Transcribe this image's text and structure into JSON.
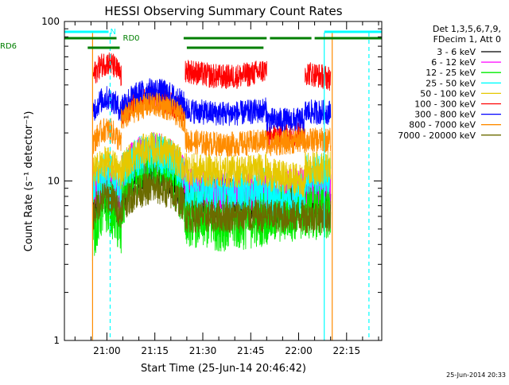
{
  "chart_data": {
    "type": "line",
    "title": "HESSI Observing Summary Count Rates",
    "xlabel": "Start Time (25-Jun-14 20:46:42)",
    "ylabel": "Count Rate (s⁻¹ detector⁻¹)",
    "yscale": "log",
    "ylim": [
      1,
      100
    ],
    "y_ticks": [
      {
        "value": 1,
        "label": "1"
      },
      {
        "value": 10,
        "label": "10"
      },
      {
        "value": 100,
        "label": "100"
      }
    ],
    "xlim": [
      "20:46:42",
      "22:26:00"
    ],
    "x_ticks": [
      {
        "time": "21:00",
        "label": "21:00"
      },
      {
        "time": "21:15",
        "label": "21:15"
      },
      {
        "time": "21:30",
        "label": "21:30"
      },
      {
        "time": "21:45",
        "label": "21:45"
      },
      {
        "time": "22:00",
        "label": "22:00"
      },
      {
        "time": "22:15",
        "label": "22:15"
      }
    ],
    "legend": {
      "placement": "right",
      "header": [
        "Det 1,3,5,6,7,9,",
        "FDecim 1, Att 0"
      ],
      "entries": [
        {
          "label": "3 - 6 keV",
          "color": "#000000"
        },
        {
          "label": "6 - 12 keV",
          "color": "#ff00ff"
        },
        {
          "label": "12 - 25 keV",
          "color": "#00ee00"
        },
        {
          "label": "25 - 50 keV",
          "color": "#00ffff"
        },
        {
          "label": "50 - 100 keV",
          "color": "#e6c800"
        },
        {
          "label": "100 - 300 keV",
          "color": "#ff0000"
        },
        {
          "label": "300 - 800 keV",
          "color": "#0000ff"
        },
        {
          "label": "800 - 7000 keV",
          "color": "#ff8c00"
        },
        {
          "label": "7000 - 20000 keV",
          "color": "#6b6b00"
        }
      ]
    },
    "flag_bars": [
      {
        "label": "N",
        "color": "#00ffff",
        "segments": [
          [
            "20:46:42",
            "21:00:30"
          ],
          [
            "22:08:00",
            "22:26:00"
          ]
        ]
      },
      {
        "label": "RD0",
        "color": "#007f00",
        "segments": [
          [
            "20:46:42",
            "21:03:00"
          ],
          [
            "21:24:00",
            "21:50:00"
          ],
          [
            "21:51:00",
            "22:04:00"
          ],
          [
            "22:05:00",
            "22:26:00"
          ]
        ]
      },
      {
        "label": "RD6",
        "color": "#007f00",
        "segments": [
          [
            "20:54:00",
            "21:04:00"
          ],
          [
            "21:25:00",
            "21:49:00"
          ]
        ]
      }
    ],
    "vertical_markers": [
      {
        "time": "20:55:30",
        "color": "#ff8c00",
        "style": "solid"
      },
      {
        "time": "21:01:00",
        "color": "#00ffff",
        "style": "dashed"
      },
      {
        "time": "22:08:00",
        "color": "#00ffff",
        "style": "solid"
      },
      {
        "time": "22:10:30",
        "color": "#ff8c00",
        "style": "solid"
      },
      {
        "time": "22:22:00",
        "color": "#00ffff",
        "style": "dashed"
      }
    ],
    "segments": [
      {
        "start": "20:55:30",
        "end": "21:04:30",
        "shape": "hump"
      },
      {
        "start": "21:04:30",
        "end": "21:24:30",
        "shape": "hump"
      },
      {
        "start": "21:24:30",
        "end": "21:50:00",
        "shape": "dip"
      },
      {
        "start": "21:50:00",
        "end": "22:02:00",
        "shape": "flat"
      },
      {
        "start": "22:02:00",
        "end": "22:10:00",
        "shape": "flat"
      }
    ],
    "series": [
      {
        "name": "3 - 6 keV",
        "color": "#000000",
        "noise": 0.05,
        "segment_values": [
          [
            6.5,
            8.5
          ],
          [
            8,
            12
          ],
          [
            7,
            9
          ],
          [
            7,
            8
          ],
          [
            8,
            8
          ]
        ]
      },
      {
        "name": "6 - 12 keV",
        "color": "#ff00ff",
        "noise": 0.05,
        "segment_values": [
          [
            8.5,
            10
          ],
          [
            11,
            15
          ],
          [
            9,
            8
          ],
          [
            8.5,
            9
          ],
          [
            9,
            9
          ]
        ]
      },
      {
        "name": "12 - 25 keV",
        "color": "#00ee00",
        "noise": 0.07,
        "segment_values": [
          [
            4.5,
            7
          ],
          [
            7,
            13
          ],
          [
            6,
            5
          ],
          [
            6,
            6.5
          ],
          [
            6.5,
            6.5
          ]
        ]
      },
      {
        "name": "25 - 50 keV",
        "color": "#00ffff",
        "noise": 0.05,
        "segment_values": [
          [
            9,
            11
          ],
          [
            11,
            15
          ],
          [
            9,
            8
          ],
          [
            8,
            8.5
          ],
          [
            11,
            11
          ]
        ]
      },
      {
        "name": "50 - 100 keV",
        "color": "#e6c800",
        "noise": 0.04,
        "segment_values": [
          [
            11,
            13
          ],
          [
            12,
            16
          ],
          [
            12,
            11
          ],
          [
            11,
            10
          ],
          [
            12,
            12
          ]
        ]
      },
      {
        "name": "100 - 300 keV",
        "color": "#ff0000",
        "noise": 0.03,
        "segment_values": [
          [
            45,
            55
          ],
          [
            26,
            33
          ],
          [
            50,
            40
          ],
          [
            19,
            20
          ],
          [
            48,
            44
          ]
        ]
      },
      {
        "name": "300 - 800 keV",
        "color": "#0000ff",
        "noise": 0.03,
        "segment_values": [
          [
            27,
            33
          ],
          [
            30,
            37
          ],
          [
            28,
            25
          ],
          [
            24,
            24
          ],
          [
            27,
            27
          ]
        ]
      },
      {
        "name": "800 - 7000 keV",
        "color": "#ff8c00",
        "noise": 0.03,
        "segment_values": [
          [
            17,
            21
          ],
          [
            24,
            30
          ],
          [
            18,
            16
          ],
          [
            17,
            18
          ],
          [
            18,
            18
          ]
        ]
      },
      {
        "name": "7000 - 20000 keV",
        "color": "#6b6b00",
        "noise": 0.04,
        "segment_values": [
          [
            6,
            8
          ],
          [
            7,
            9
          ],
          [
            6,
            6
          ],
          [
            6,
            6
          ],
          [
            6,
            6
          ]
        ]
      }
    ],
    "grid": false,
    "footer_timestamp": "25-Jun-2014 20:33"
  }
}
